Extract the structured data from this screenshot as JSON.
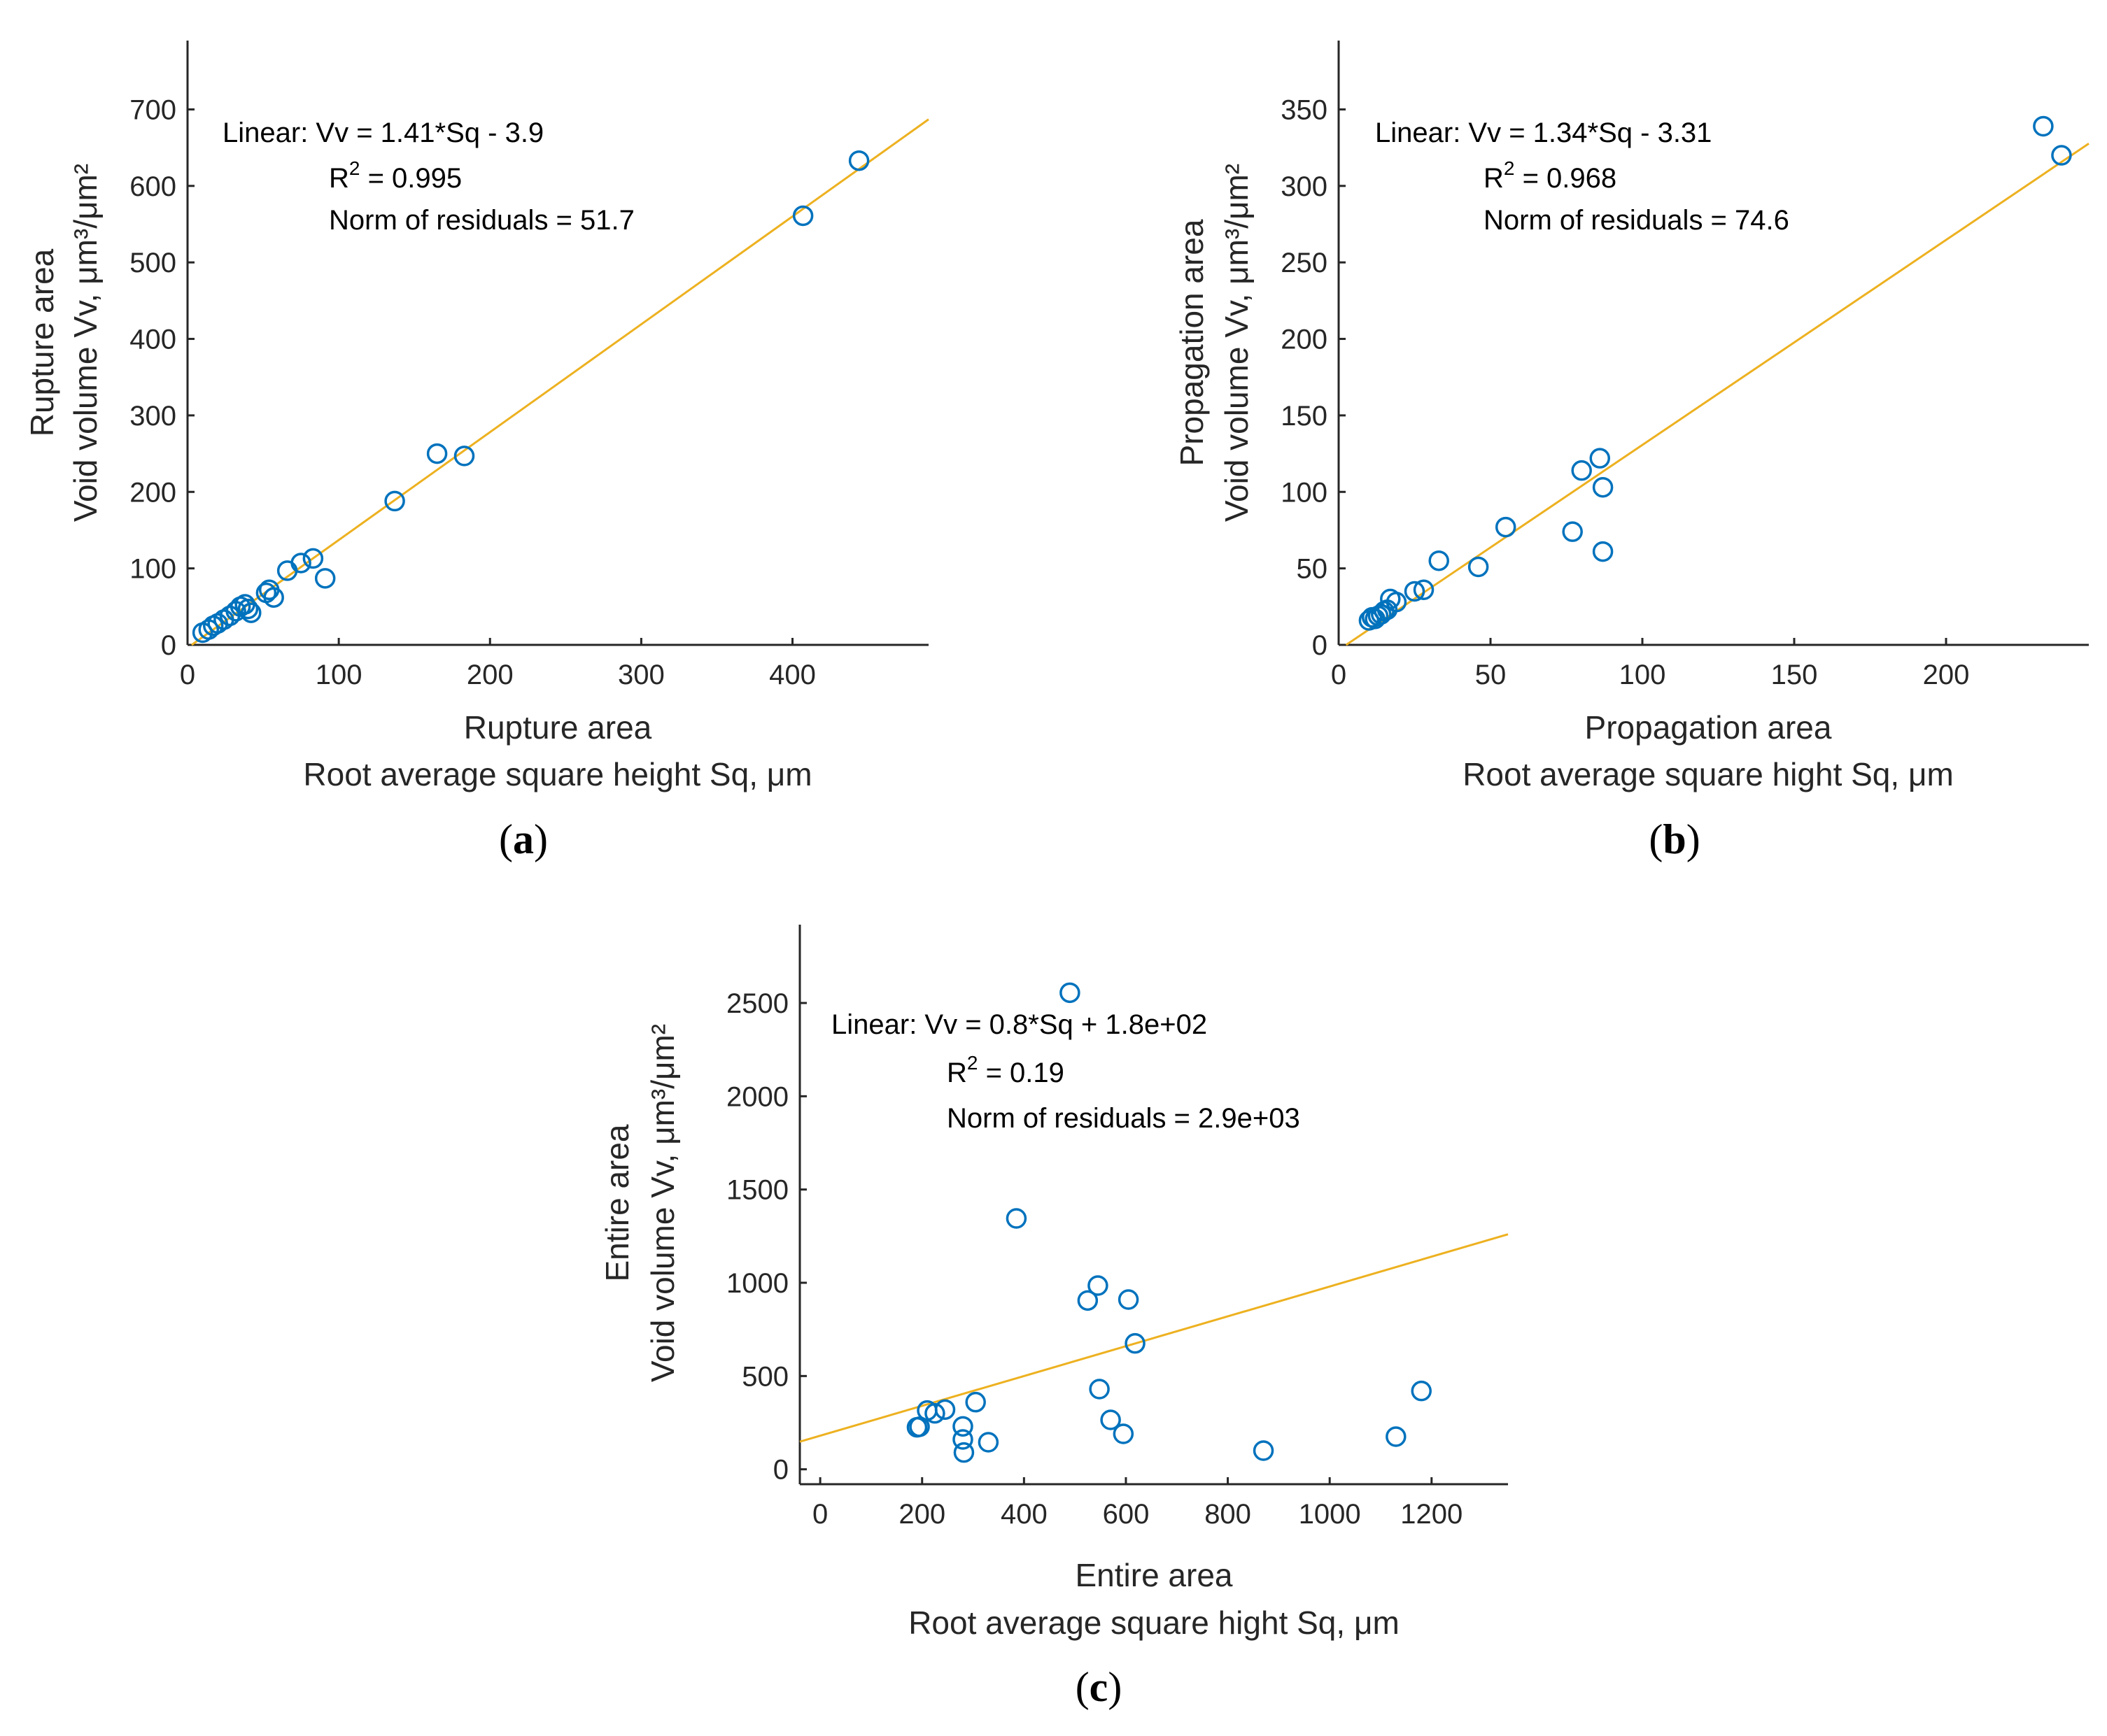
{
  "colors": {
    "marker": "#0072BD",
    "fit_line": "#EDB120",
    "axis": "#262626"
  },
  "chart_data": [
    {
      "type": "scatter",
      "panel_label": {
        "open": "(",
        "letter": "a",
        "close": ")"
      },
      "xlabel_lines": [
        "Rupture area",
        "Root average square height Sq, μm"
      ],
      "ylabel_lines": [
        "Rupture area",
        "Void volume Vv, μm³/μm²"
      ],
      "xlim": [
        0,
        490
      ],
      "ylim": [
        0,
        790
      ],
      "xticks": [
        0,
        100,
        200,
        300,
        400
      ],
      "yticks": [
        0,
        100,
        200,
        300,
        400,
        500,
        600,
        700
      ],
      "fit": {
        "slope": 1.41,
        "intercept": -3.9
      },
      "annotation": {
        "line1": "Linear:  Vv = 1.41*Sq - 3.9",
        "r2_prefix": "R",
        "r2_sup": "2",
        "r2_suffix": " = 0.995",
        "line3": "Norm of residuals = 51.7"
      },
      "points": [
        {
          "x": 10,
          "y": 16
        },
        {
          "x": 14,
          "y": 20
        },
        {
          "x": 17,
          "y": 25
        },
        {
          "x": 20,
          "y": 28
        },
        {
          "x": 24,
          "y": 33
        },
        {
          "x": 28,
          "y": 38
        },
        {
          "x": 32,
          "y": 44
        },
        {
          "x": 35,
          "y": 50
        },
        {
          "x": 38,
          "y": 53
        },
        {
          "x": 40,
          "y": 47
        },
        {
          "x": 42,
          "y": 42
        },
        {
          "x": 52,
          "y": 68
        },
        {
          "x": 54,
          "y": 72
        },
        {
          "x": 57,
          "y": 62
        },
        {
          "x": 66,
          "y": 97
        },
        {
          "x": 75,
          "y": 107
        },
        {
          "x": 83,
          "y": 113
        },
        {
          "x": 91,
          "y": 87
        },
        {
          "x": 137,
          "y": 188
        },
        {
          "x": 165,
          "y": 250
        },
        {
          "x": 183,
          "y": 247
        },
        {
          "x": 407,
          "y": 561
        },
        {
          "x": 444,
          "y": 633
        }
      ]
    },
    {
      "type": "scatter",
      "panel_label": {
        "open": "(",
        "letter": "b",
        "close": ")"
      },
      "xlabel_lines": [
        "Propagation area",
        "Root average square hight Sq, μm"
      ],
      "ylabel_lines": [
        "Propagation area",
        "Void volume Vv, μm³/μm²"
      ],
      "xlim": [
        0,
        247
      ],
      "ylim": [
        0,
        395
      ],
      "xticks": [
        0,
        50,
        100,
        150,
        200
      ],
      "yticks": [
        0,
        50,
        100,
        150,
        200,
        250,
        300,
        350
      ],
      "fit": {
        "slope": 1.34,
        "intercept": -3.31
      },
      "annotation": {
        "line1": "Linear:  Vv = 1.34*Sq - 3.31",
        "r2_prefix": "R",
        "r2_sup": "2",
        "r2_suffix": " = 0.968",
        "line3": "Norm of residuals = 74.6"
      },
      "points": [
        {
          "x": 10,
          "y": 16
        },
        {
          "x": 11,
          "y": 18
        },
        {
          "x": 12,
          "y": 17
        },
        {
          "x": 13,
          "y": 19
        },
        {
          "x": 14,
          "y": 20
        },
        {
          "x": 15,
          "y": 22
        },
        {
          "x": 16,
          "y": 23
        },
        {
          "x": 17,
          "y": 30
        },
        {
          "x": 19,
          "y": 28
        },
        {
          "x": 25,
          "y": 35
        },
        {
          "x": 28,
          "y": 36
        },
        {
          "x": 33,
          "y": 55
        },
        {
          "x": 46,
          "y": 51
        },
        {
          "x": 55,
          "y": 77
        },
        {
          "x": 77,
          "y": 74
        },
        {
          "x": 80,
          "y": 114
        },
        {
          "x": 86,
          "y": 122
        },
        {
          "x": 87,
          "y": 103
        },
        {
          "x": 87,
          "y": 61
        },
        {
          "x": 232,
          "y": 339
        },
        {
          "x": 238,
          "y": 320
        }
      ]
    },
    {
      "type": "scatter",
      "panel_label": {
        "open": "(",
        "letter": "c",
        "close": ")"
      },
      "xlabel_lines": [
        "Entire area",
        "Root average square hight Sq, μm"
      ],
      "ylabel_lines": [
        "Entire area",
        "Void volume Vv, μm³/μm²"
      ],
      "xlim": [
        -40,
        1350
      ],
      "ylim": [
        -80,
        2920
      ],
      "xticks": [
        0,
        200,
        400,
        600,
        800,
        1000,
        1200
      ],
      "yticks": [
        0,
        500,
        1000,
        1500,
        2000,
        2500
      ],
      "fit": {
        "slope": 0.8,
        "intercept": 180
      },
      "annotation": {
        "line1": "Linear:  Vv = 0.8*Sq + 1.8e+02",
        "r2_prefix": "R",
        "r2_sup": "2",
        "r2_suffix": " = 0.19",
        "line3": "Norm of residuals = 2.9e+03"
      },
      "points": [
        {
          "x": 190,
          "y": 225
        },
        {
          "x": 195,
          "y": 228
        },
        {
          "x": 210,
          "y": 315
        },
        {
          "x": 225,
          "y": 300
        },
        {
          "x": 245,
          "y": 320
        },
        {
          "x": 280,
          "y": 230
        },
        {
          "x": 280,
          "y": 160
        },
        {
          "x": 282,
          "y": 90
        },
        {
          "x": 305,
          "y": 360
        },
        {
          "x": 330,
          "y": 145
        },
        {
          "x": 385,
          "y": 1345
        },
        {
          "x": 490,
          "y": 2555
        },
        {
          "x": 525,
          "y": 905
        },
        {
          "x": 545,
          "y": 985
        },
        {
          "x": 548,
          "y": 430
        },
        {
          "x": 570,
          "y": 265
        },
        {
          "x": 595,
          "y": 190
        },
        {
          "x": 605,
          "y": 910
        },
        {
          "x": 618,
          "y": 675
        },
        {
          "x": 870,
          "y": 100
        },
        {
          "x": 1130,
          "y": 175
        },
        {
          "x": 1180,
          "y": 420
        }
      ]
    }
  ]
}
